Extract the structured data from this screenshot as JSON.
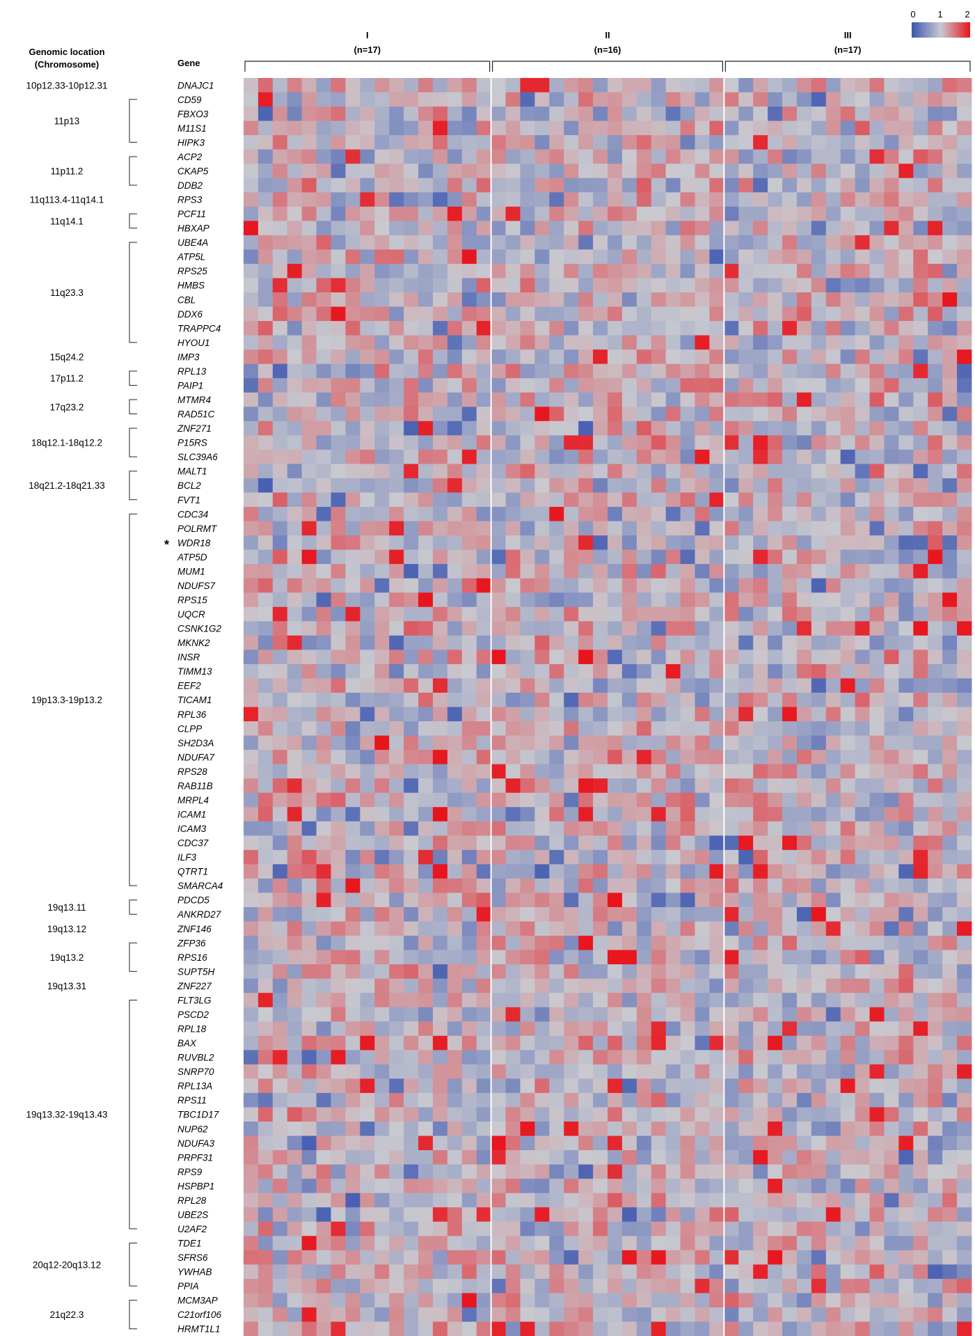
{
  "headers": {
    "location_line1": "Genomic location",
    "location_line2": "(Chromosome)",
    "gene": "Gene"
  },
  "groups": [
    {
      "label": "I",
      "n": "(n=17)",
      "count": 17
    },
    {
      "label": "II",
      "n": "(n=16)",
      "count": 16
    },
    {
      "label": "III",
      "n": "(n=17)",
      "count": 17
    }
  ],
  "legend": {
    "ticks": [
      "0",
      "1",
      "2"
    ],
    "colors": {
      "low": "#3b55b0",
      "mid": "#c9c9cf",
      "high": "#e8141c"
    }
  },
  "marker": "*",
  "marked_gene": "WDR18",
  "chart_data": {
    "type": "heatmap",
    "title": "",
    "xlabel": "",
    "ylabel": "",
    "value_range": [
      0,
      2
    ],
    "columns": 50,
    "genes": [
      "DNAJC1",
      "CD59",
      "FBXO3",
      "M11S1",
      "HIPK3",
      "ACP2",
      "CKAP5",
      "DDB2",
      "RPS3",
      "PCF11",
      "HBXAP",
      "UBE4A",
      "ATP5L",
      "RPS25",
      "HMBS",
      "CBL",
      "DDX6",
      "TRAPPC4",
      "HYOU1",
      "IMP3",
      "RPL13",
      "PAIP1",
      "MTMR4",
      "RAD51C",
      "ZNF271",
      "P15RS",
      "SLC39A6",
      "MALT1",
      "BCL2",
      "FVT1",
      "CDC34",
      "POLRMT",
      "WDR18",
      "ATP5D",
      "MUM1",
      "NDUFS7",
      "RPS15",
      "UQCR",
      "CSNK1G2",
      "MKNK2",
      "INSR",
      "TIMM13",
      "EEF2",
      "TICAM1",
      "RPL36",
      "CLPP",
      "SH2D3A",
      "NDUFA7",
      "RPS28",
      "RAB11B",
      "MRPL4",
      "ICAM1",
      "ICAM3",
      "CDC37",
      "ILF3",
      "QTRT1",
      "SMARCA4",
      "PDCD5",
      "ANKRD27",
      "ZNF146",
      "ZFP36",
      "RPS16",
      "SUPT5H",
      "ZNF227",
      "FLT3LG",
      "PSCD2",
      "RPL18",
      "BAX",
      "RUVBL2",
      "SNRP70",
      "RPL13A",
      "RPS11",
      "TBC1D17",
      "NUP62",
      "NDUFA3",
      "PRPF31",
      "RPS9",
      "HSPBP1",
      "RPL28",
      "UBE2S",
      "U2AF2",
      "TDE1",
      "SFRS6",
      "YWHAB",
      "PPIA",
      "MCM3AP",
      "C21orf106",
      "HRMT1L1"
    ],
    "locations": [
      {
        "label": "10p12.33-10p12.31",
        "start": 0,
        "end": 0
      },
      {
        "label": "11p13",
        "start": 1,
        "end": 4
      },
      {
        "label": "11p11.2",
        "start": 5,
        "end": 7
      },
      {
        "label": "11q113.4-11q14.1",
        "start": 8,
        "end": 8
      },
      {
        "label": "11q14.1",
        "start": 9,
        "end": 10
      },
      {
        "label": "11q23.3",
        "start": 11,
        "end": 18
      },
      {
        "label": "15q24.2",
        "start": 19,
        "end": 19
      },
      {
        "label": "17p11.2",
        "start": 20,
        "end": 21
      },
      {
        "label": "17q23.2",
        "start": 22,
        "end": 23
      },
      {
        "label": "18q12.1-18q12.2",
        "start": 24,
        "end": 26
      },
      {
        "label": "18q21.2-18q21.33",
        "start": 27,
        "end": 29
      },
      {
        "label": "19p13.3-19p13.2",
        "start": 30,
        "end": 56
      },
      {
        "label": "19q13.11",
        "start": 57,
        "end": 58
      },
      {
        "label": "19q13.12",
        "start": 59,
        "end": 59
      },
      {
        "label": "19q13.2",
        "start": 60,
        "end": 62
      },
      {
        "label": "19q13.31",
        "start": 63,
        "end": 63
      },
      {
        "label": "19q13.32-19q13.43",
        "start": 64,
        "end": 80
      },
      {
        "label": "20q12-20q13.12",
        "start": 81,
        "end": 84
      },
      {
        "label": "21q22.3",
        "start": 85,
        "end": 87
      }
    ],
    "values_note": ""
  }
}
